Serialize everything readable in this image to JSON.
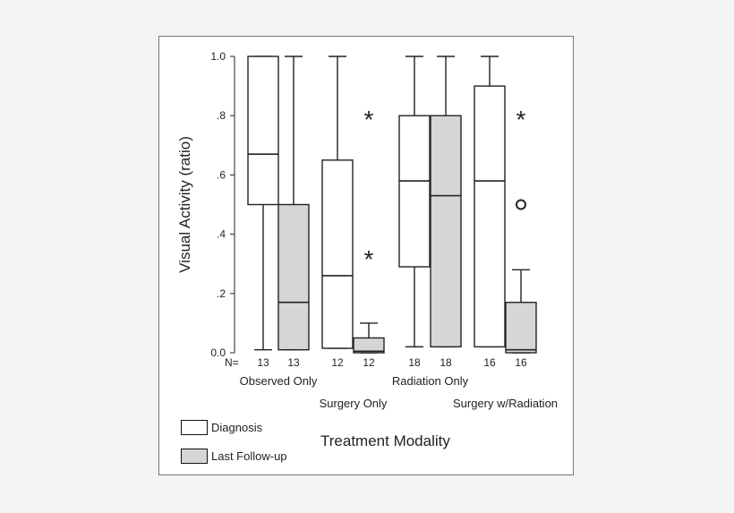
{
  "chart_data": {
    "type": "box",
    "title": "",
    "ylabel": "Visual Activity (ratio)",
    "xlabel": "Treatment Modality",
    "ylim": [
      0,
      1
    ],
    "yticks": [
      {
        "value": 0,
        "label": "0.0"
      },
      {
        "value": 0.2,
        "label": ".2"
      },
      {
        "value": 0.4,
        "label": ".4"
      },
      {
        "value": 0.6,
        "label": ".6"
      },
      {
        "value": 0.8,
        "label": ".8"
      },
      {
        "value": 1.0,
        "label": "1.0"
      }
    ],
    "n_prefix": "N=",
    "legend": {
      "placement": "bottom-left",
      "entries": [
        {
          "name": "Diagnosis",
          "color": "#ffffff"
        },
        {
          "name": "Last Follow-up",
          "color": "#d6d6d6"
        }
      ]
    },
    "groups": [
      {
        "label": "Observed Only",
        "label_row": 1
      },
      {
        "label": "Surgery Only",
        "label_row": 2
      },
      {
        "label": "Radiation Only",
        "label_row": 1
      },
      {
        "label": "Surgery w/Radiation",
        "label_row": 2
      }
    ],
    "series": [
      {
        "name": "Diagnosis",
        "fill": "#ffffff",
        "boxes": [
          {
            "n": "13",
            "min": 0.01,
            "q1": 0.5,
            "median": 0.67,
            "q3": 1.0,
            "max": 1.0,
            "outliers": []
          },
          {
            "n": "12",
            "min": 0.015,
            "q1": 0.015,
            "median": 0.26,
            "q3": 0.65,
            "max": 1.0,
            "outliers": []
          },
          {
            "n": "18",
            "min": 0.02,
            "q1": 0.29,
            "median": 0.58,
            "q3": 0.8,
            "max": 1.0,
            "outliers": []
          },
          {
            "n": "16",
            "min": 0.02,
            "q1": 0.02,
            "median": 0.58,
            "q3": 0.9,
            "max": 1.0,
            "outliers": []
          }
        ]
      },
      {
        "name": "Last Follow-up",
        "fill": "#d6d6d6",
        "boxes": [
          {
            "n": "13",
            "min": 0.01,
            "q1": 0.01,
            "median": 0.17,
            "q3": 0.5,
            "max": 1.0,
            "outliers": []
          },
          {
            "n": "12",
            "min": 0.0,
            "q1": 0.0,
            "median": 0.005,
            "q3": 0.05,
            "max": 0.1,
            "outliers": [
              {
                "value": 0.8,
                "symbol": "*"
              },
              {
                "value": 0.33,
                "symbol": "*"
              }
            ]
          },
          {
            "n": "18",
            "min": 0.02,
            "q1": 0.02,
            "median": 0.53,
            "q3": 0.8,
            "max": 1.0,
            "outliers": []
          },
          {
            "n": "16",
            "min": 0.0,
            "q1": 0.0,
            "median": 0.01,
            "q3": 0.17,
            "max": 0.28,
            "outliers": [
              {
                "value": 0.8,
                "symbol": "*"
              },
              {
                "value": 0.5,
                "symbol": "o"
              }
            ]
          }
        ]
      }
    ]
  }
}
